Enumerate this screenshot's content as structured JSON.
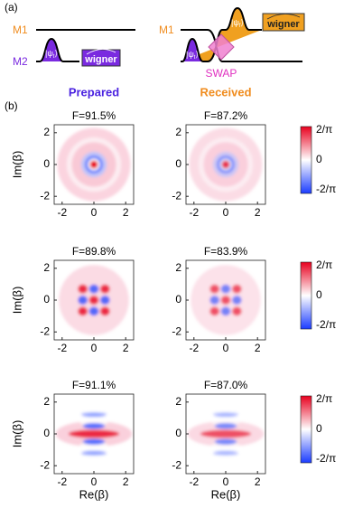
{
  "panel_a": {
    "label": "(a)",
    "m1": "M1",
    "m2": "M2",
    "state_t": [
      "|ψ",
      "t",
      "⟩"
    ],
    "state_f": [
      "|ψ",
      "f",
      "⟩"
    ],
    "wigner": "wigner",
    "swap": "SWAP"
  },
  "panel_b": {
    "label": "(b)",
    "columns": [
      "Prepared",
      "Received"
    ],
    "fidelities": [
      [
        "F=91.5%",
        "F=87.2%"
      ],
      [
        "F=89.8%",
        "F=83.9%"
      ],
      [
        "F=91.1%",
        "F=87.0%"
      ]
    ],
    "ylabel": "Im(β)",
    "xlabel": "Re(β)",
    "ticks": [
      -2,
      0,
      2
    ],
    "colorbar_labels": [
      "2/π",
      "0",
      "-2/π"
    ]
  }
}
